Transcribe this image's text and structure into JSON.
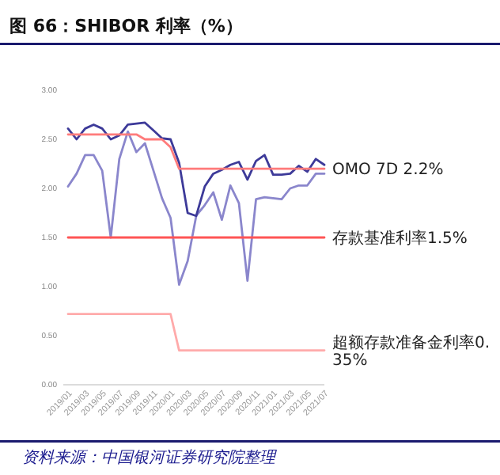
{
  "chart_data": {
    "type": "line",
    "title": "图 66：SHIBOR 利率（%）",
    "categories": [
      "2019/01",
      null,
      "2019/03",
      null,
      "2019/05",
      null,
      "2019/07",
      null,
      "2019/09",
      null,
      "2019/11",
      null,
      "2020/01",
      null,
      "2020/03",
      null,
      "2020/05",
      null,
      "2020/07",
      null,
      "2020/09",
      null,
      "2020/11",
      null,
      "2021/01",
      null,
      "2021/03",
      null,
      "2021/05",
      null,
      "2021/07"
    ],
    "ylim": [
      0,
      3
    ],
    "yticks": [
      {
        "value": 0,
        "label": "0.00"
      },
      {
        "value": 0.5,
        "label": "0.50"
      },
      {
        "value": 1,
        "label": "1.00"
      },
      {
        "value": 1.5,
        "label": "1.50"
      },
      {
        "value": 2,
        "label": "2.00"
      },
      {
        "value": 2.5,
        "label": "2.50"
      },
      {
        "value": 3,
        "label": "3.00"
      }
    ],
    "grid": false,
    "legend": false,
    "marker": "none",
    "line_style": "solid",
    "series": [
      {
        "color": "#8a86cc",
        "values": [
          2.02,
          2.15,
          2.34,
          2.34,
          2.18,
          1.5,
          2.3,
          2.58,
          2.37,
          2.46,
          2.18,
          1.9,
          1.7,
          1.02,
          1.26,
          1.72,
          1.83,
          1.96,
          1.68,
          2.03,
          1.85,
          1.06,
          1.89,
          1.91,
          1.9,
          1.89,
          2.0,
          2.03,
          2.03,
          2.15,
          2.15
        ]
      },
      {
        "color": "#3d3a99",
        "values": [
          2.61,
          2.5,
          2.61,
          2.65,
          2.61,
          2.5,
          2.54,
          2.65,
          2.66,
          2.67,
          2.59,
          2.51,
          2.5,
          2.26,
          1.75,
          1.72,
          2.02,
          2.15,
          2.19,
          2.24,
          2.27,
          2.09,
          2.28,
          2.34,
          2.14,
          2.14,
          2.15,
          2.23,
          2.17,
          2.3,
          2.24
        ]
      },
      {
        "name": "OMO 7D 2.2%",
        "color": "#ff7b7b",
        "values": [
          2.55,
          2.55,
          2.55,
          2.55,
          2.55,
          2.55,
          2.55,
          2.55,
          2.55,
          2.5,
          2.5,
          2.5,
          2.42,
          2.2,
          2.2,
          2.2,
          2.2,
          2.2,
          2.2,
          2.2,
          2.2,
          2.2,
          2.2,
          2.2,
          2.2,
          2.2,
          2.2,
          2.2,
          2.2,
          2.2,
          2.2
        ]
      },
      {
        "name": "存款基准利率1.5%",
        "color": "#ff5555",
        "values": [
          1.5,
          1.5,
          1.5,
          1.5,
          1.5,
          1.5,
          1.5,
          1.5,
          1.5,
          1.5,
          1.5,
          1.5,
          1.5,
          1.5,
          1.5,
          1.5,
          1.5,
          1.5,
          1.5,
          1.5,
          1.5,
          1.5,
          1.5,
          1.5,
          1.5,
          1.5,
          1.5,
          1.5,
          1.5,
          1.5,
          1.5
        ]
      },
      {
        "name": "超额存款准备金利率0.35%",
        "color": "#ffaaaa",
        "values": [
          0.72,
          0.72,
          0.72,
          0.72,
          0.72,
          0.72,
          0.72,
          0.72,
          0.72,
          0.72,
          0.72,
          0.72,
          0.72,
          0.35,
          0.35,
          0.35,
          0.35,
          0.35,
          0.35,
          0.35,
          0.35,
          0.35,
          0.35,
          0.35,
          0.35,
          0.35,
          0.35,
          0.35,
          0.35,
          0.35,
          0.35
        ]
      }
    ],
    "annotations": [
      "资料来源：中国银河证券研究院整理"
    ]
  }
}
